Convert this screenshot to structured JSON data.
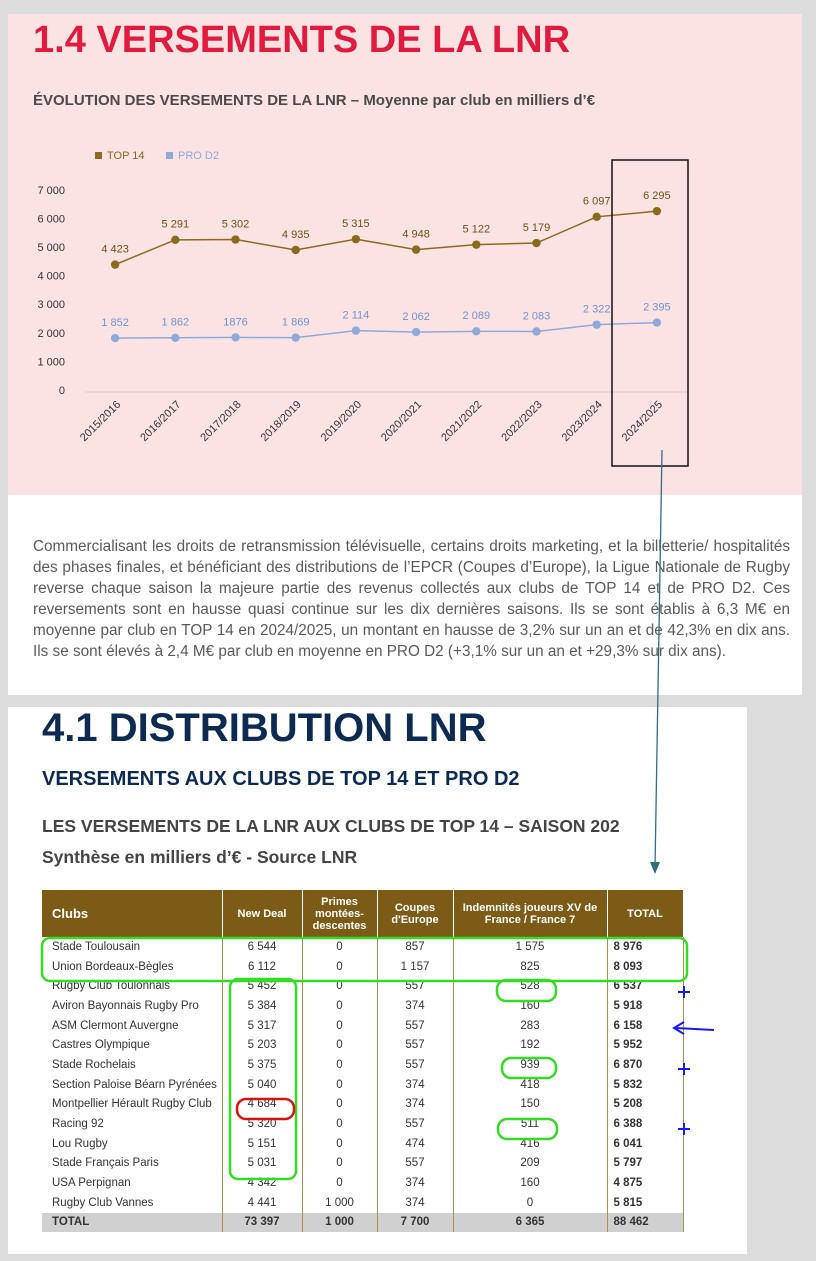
{
  "chart_data": {
    "type": "line",
    "title": "1.4 VERSEMENTS DE LA LNR",
    "subtitle": "ÉVOLUTION DES VERSEMENTS DE LA LNR – Moyenne par club en milliers d’€",
    "categories": [
      "2015/2016",
      "2016/2017",
      "2017/2018",
      "2018/2019",
      "2019/2020",
      "2020/2021",
      "2021/2022",
      "2022/2023",
      "2023/2024",
      "2024/2025"
    ],
    "series": [
      {
        "name": "TOP 14",
        "color": "#8a6a1e",
        "values": [
          4423,
          5291,
          5302,
          4935,
          5315,
          4948,
          5122,
          5179,
          6097,
          6295
        ],
        "value_labels": [
          "4 423",
          "5 291",
          "5 302",
          "4 935",
          "5 315",
          "4 948",
          "5 122",
          "5 179",
          "6 097",
          "6 295"
        ]
      },
      {
        "name": "PRO D2",
        "color": "#8eaadb",
        "values": [
          1852,
          1862,
          1876,
          1869,
          2114,
          2062,
          2089,
          2083,
          2322,
          2395
        ],
        "value_labels": [
          "1 852",
          "1 862",
          "1876",
          "1 869",
          "2 114",
          "2 062",
          "2 089",
          "2 083",
          "2 322",
          "2 395"
        ]
      }
    ],
    "ylim": [
      0,
      7000
    ],
    "yticks": [
      0,
      {
        "value": 1000,
        "label": "1 000"
      },
      {
        "value": 2000,
        "label": "2 000"
      },
      {
        "value": 3000,
        "label": "3 000"
      },
      {
        "value": 4000,
        "label": "4 000"
      },
      {
        "value": 5000,
        "label": "5 000"
      },
      {
        "value": 6000,
        "label": "6 000"
      },
      {
        "value": 7000,
        "label": "7 000"
      }
    ],
    "legend": "top-left"
  },
  "paragraph": "Commercialisant les droits de retransmission télévisuelle, certains droits marketing, et la billetterie/ hospitalités des phases finales, et bénéficiant des distributions de l’EPCR (Coupes d’Europe), la Ligue Nationale de Rugby reverse chaque saison la majeure partie des revenus collectés aux clubs de TOP 14 et de PRO D2. Ces reversements sont en hausse quasi continue sur les dix dernières saisons. Ils se sont établis à 6,3 M€ en moyenne par club en TOP 14 en 2024/2025, un montant en hausse de 3,2% sur un an et de 42,3% en dix ans. Ils se sont élevés à 2,4 M€ par club en moyenne en PRO D2 (+3,1% sur un an et +29,3% sur dix ans).",
  "section": {
    "title": "4.1 DISTRIBUTION LNR",
    "subtitle": "VERSEMENTS AUX CLUBS DE TOP 14 ET PRO D2",
    "heading": "LES VERSEMENTS DE LA LNR AUX CLUBS DE TOP 14 – SAISON 202",
    "note": "Synthèse en milliers d’€ - Source LNR"
  },
  "table": {
    "header": [
      "Clubs",
      "New Deal",
      "Primes montées-descentes",
      "Coupes d'Europe",
      "Indemnités joueurs XV de France / France 7",
      "TOTAL"
    ],
    "rows": [
      [
        "Stade Toulousain",
        "6 544",
        "0",
        "857",
        "1 575",
        "8 976"
      ],
      [
        "Union Bordeaux-Bègles",
        "6 112",
        "0",
        "1 157",
        "825",
        "8 093"
      ],
      [
        "Rugby Club Toulonnais",
        "5 452",
        "0",
        "557",
        "528",
        "6 537"
      ],
      [
        "Aviron Bayonnais Rugby Pro",
        "5 384",
        "0",
        "374",
        "160",
        "5 918"
      ],
      [
        "ASM Clermont Auvergne",
        "5 317",
        "0",
        "557",
        "283",
        "6 158"
      ],
      [
        "Castres Olympique",
        "5 203",
        "0",
        "557",
        "192",
        "5 952"
      ],
      [
        "Stade Rochelais",
        "5 375",
        "0",
        "557",
        "939",
        "6 870"
      ],
      [
        "Section Paloise Béarn Pyrénées",
        "5 040",
        "0",
        "374",
        "418",
        "5 832"
      ],
      [
        "Montpellier Hérault Rugby Club",
        "4 684",
        "0",
        "374",
        "150",
        "5 208"
      ],
      [
        "Racing 92",
        "5 320",
        "0",
        "557",
        "511",
        "6 388"
      ],
      [
        "Lou Rugby",
        "5 151",
        "0",
        "474",
        "416",
        "6 041"
      ],
      [
        "Stade Français Paris",
        "5 031",
        "0",
        "557",
        "209",
        "5 797"
      ],
      [
        "USA Perpignan",
        "4 342",
        "0",
        "374",
        "160",
        "4 875"
      ],
      [
        "Rugby Club Vannes",
        "4 441",
        "1 000",
        "374",
        "0",
        "5 815"
      ]
    ],
    "total": [
      "TOTAL",
      "73 397",
      "1 000",
      "7 700",
      "6 365",
      "88 462"
    ]
  }
}
